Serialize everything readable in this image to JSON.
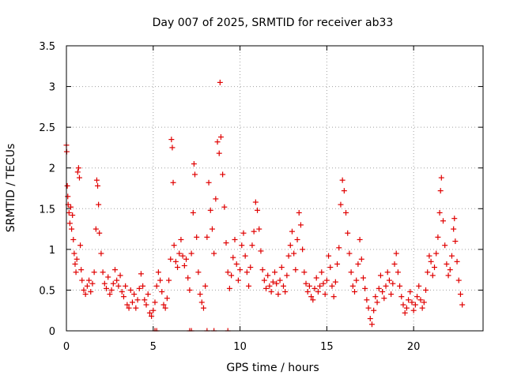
{
  "chart_data": {
    "type": "scatter",
    "title": "Day 007 of 2025, SRMTID for receiver ab33",
    "xlabel": "GPS time / hours",
    "ylabel": "SRMTID / TECUs",
    "xlim": [
      0,
      24
    ],
    "ylim": [
      0,
      3.5
    ],
    "grid": true,
    "marker": "plus",
    "color": "#e00000",
    "xticks": [
      0,
      5,
      10,
      15,
      20
    ],
    "xtick_labels": [
      "0",
      "5",
      "10",
      "15",
      "20"
    ],
    "yticks": [
      0,
      0.5,
      1,
      1.5,
      2,
      2.5,
      3,
      3.5
    ],
    "ytick_labels": [
      "0",
      "0.5",
      "1",
      "1.5",
      "2",
      "2.5",
      "3",
      "3.5"
    ],
    "series": [
      {
        "name": "SRMTID",
        "points": [
          [
            0.0,
            2.28
          ],
          [
            0.02,
            2.2
          ],
          [
            0.05,
            1.78
          ],
          [
            0.08,
            1.65
          ],
          [
            0.1,
            1.55
          ],
          [
            0.15,
            1.45
          ],
          [
            0.2,
            1.32
          ],
          [
            0.25,
            1.52
          ],
          [
            0.3,
            1.25
          ],
          [
            0.35,
            1.42
          ],
          [
            0.4,
            1.12
          ],
          [
            0.45,
            0.95
          ],
          [
            0.5,
            0.82
          ],
          [
            0.55,
            0.72
          ],
          [
            0.6,
            0.88
          ],
          [
            0.65,
            1.95
          ],
          [
            0.7,
            2.0
          ],
          [
            0.75,
            1.88
          ],
          [
            0.8,
            1.05
          ],
          [
            0.85,
            0.75
          ],
          [
            0.9,
            0.62
          ],
          [
            1.0,
            0.5
          ],
          [
            1.1,
            0.45
          ],
          [
            1.2,
            0.55
          ],
          [
            1.3,
            0.62
          ],
          [
            1.4,
            0.48
          ],
          [
            1.5,
            0.58
          ],
          [
            1.6,
            0.72
          ],
          [
            1.7,
            1.25
          ],
          [
            1.75,
            1.85
          ],
          [
            1.8,
            1.78
          ],
          [
            1.85,
            1.55
          ],
          [
            1.9,
            1.2
          ],
          [
            2.0,
            0.95
          ],
          [
            2.1,
            0.72
          ],
          [
            2.2,
            0.58
          ],
          [
            2.3,
            0.52
          ],
          [
            2.4,
            0.66
          ],
          [
            2.5,
            0.45
          ],
          [
            2.6,
            0.5
          ],
          [
            2.7,
            0.58
          ],
          [
            2.8,
            0.75
          ],
          [
            2.9,
            0.62
          ],
          [
            3.0,
            0.55
          ],
          [
            3.1,
            0.68
          ],
          [
            3.2,
            0.48
          ],
          [
            3.3,
            0.42
          ],
          [
            3.4,
            0.55
          ],
          [
            3.5,
            0.32
          ],
          [
            3.6,
            0.28
          ],
          [
            3.7,
            0.5
          ],
          [
            3.8,
            0.35
          ],
          [
            3.9,
            0.45
          ],
          [
            4.0,
            0.28
          ],
          [
            4.1,
            0.38
          ],
          [
            4.2,
            0.52
          ],
          [
            4.3,
            0.7
          ],
          [
            4.4,
            0.55
          ],
          [
            4.5,
            0.38
          ],
          [
            4.6,
            0.32
          ],
          [
            4.7,
            0.45
          ],
          [
            4.8,
            0.22
          ],
          [
            4.9,
            0.18
          ],
          [
            5.0,
            0.25
          ],
          [
            5.1,
            0.35
          ],
          [
            5.2,
            0.55
          ],
          [
            5.3,
            0.72
          ],
          [
            5.4,
            0.62
          ],
          [
            5.5,
            0.48
          ],
          [
            5.6,
            0.32
          ],
          [
            5.7,
            0.28
          ],
          [
            5.8,
            0.4
          ],
          [
            5.9,
            0.62
          ],
          [
            6.0,
            0.88
          ],
          [
            6.05,
            2.35
          ],
          [
            6.1,
            2.25
          ],
          [
            6.15,
            1.82
          ],
          [
            6.2,
            1.05
          ],
          [
            6.3,
            0.85
          ],
          [
            6.4,
            0.78
          ],
          [
            6.5,
            0.95
          ],
          [
            6.6,
            1.12
          ],
          [
            6.7,
            0.92
          ],
          [
            6.8,
            0.8
          ],
          [
            6.9,
            0.88
          ],
          [
            7.0,
            0.65
          ],
          [
            7.1,
            0.5
          ],
          [
            7.2,
            0.95
          ],
          [
            7.3,
            1.45
          ],
          [
            7.35,
            2.05
          ],
          [
            7.4,
            1.92
          ],
          [
            7.5,
            1.15
          ],
          [
            7.6,
            0.72
          ],
          [
            7.7,
            0.45
          ],
          [
            7.8,
            0.35
          ],
          [
            7.9,
            0.28
          ],
          [
            8.0,
            0.55
          ],
          [
            8.1,
            1.15
          ],
          [
            8.2,
            1.82
          ],
          [
            8.3,
            1.48
          ],
          [
            8.4,
            1.25
          ],
          [
            8.5,
            0.95
          ],
          [
            8.6,
            1.62
          ],
          [
            8.7,
            2.32
          ],
          [
            8.8,
            2.18
          ],
          [
            8.85,
            3.05
          ],
          [
            8.9,
            2.38
          ],
          [
            9.0,
            1.92
          ],
          [
            9.1,
            1.52
          ],
          [
            9.2,
            1.08
          ],
          [
            9.3,
            0.72
          ],
          [
            9.4,
            0.52
          ],
          [
            9.5,
            0.68
          ],
          [
            9.6,
            0.9
          ],
          [
            9.7,
            1.12
          ],
          [
            9.8,
            0.82
          ],
          [
            9.9,
            0.62
          ],
          [
            10.0,
            0.75
          ],
          [
            10.1,
            1.05
          ],
          [
            10.2,
            1.2
          ],
          [
            10.3,
            0.92
          ],
          [
            10.4,
            0.72
          ],
          [
            10.5,
            0.55
          ],
          [
            10.6,
            0.78
          ],
          [
            10.7,
            1.05
          ],
          [
            10.8,
            1.22
          ],
          [
            10.9,
            1.58
          ],
          [
            11.0,
            1.48
          ],
          [
            11.1,
            1.25
          ],
          [
            11.2,
            0.98
          ],
          [
            11.3,
            0.75
          ],
          [
            11.4,
            0.62
          ],
          [
            11.5,
            0.52
          ],
          [
            11.6,
            0.68
          ],
          [
            11.7,
            0.55
          ],
          [
            11.8,
            0.48
          ],
          [
            11.9,
            0.6
          ],
          [
            12.0,
            0.72
          ],
          [
            12.1,
            0.58
          ],
          [
            12.2,
            0.45
          ],
          [
            12.3,
            0.62
          ],
          [
            12.4,
            0.78
          ],
          [
            12.5,
            0.55
          ],
          [
            12.6,
            0.48
          ],
          [
            12.7,
            0.68
          ],
          [
            12.8,
            0.92
          ],
          [
            12.9,
            1.05
          ],
          [
            13.0,
            1.22
          ],
          [
            13.1,
            0.95
          ],
          [
            13.2,
            0.75
          ],
          [
            13.3,
            1.12
          ],
          [
            13.4,
            1.45
          ],
          [
            13.5,
            1.3
          ],
          [
            13.6,
            1.0
          ],
          [
            13.7,
            0.72
          ],
          [
            13.8,
            0.58
          ],
          [
            13.9,
            0.48
          ],
          [
            14.0,
            0.55
          ],
          [
            14.1,
            0.42
          ],
          [
            14.2,
            0.38
          ],
          [
            14.3,
            0.52
          ],
          [
            14.4,
            0.65
          ],
          [
            14.5,
            0.48
          ],
          [
            14.6,
            0.55
          ],
          [
            14.7,
            0.72
          ],
          [
            14.8,
            0.58
          ],
          [
            14.9,
            0.45
          ],
          [
            15.0,
            0.62
          ],
          [
            15.1,
            0.92
          ],
          [
            15.2,
            0.78
          ],
          [
            15.3,
            0.55
          ],
          [
            15.4,
            0.42
          ],
          [
            15.5,
            0.6
          ],
          [
            15.6,
            0.82
          ],
          [
            15.7,
            1.02
          ],
          [
            15.8,
            1.55
          ],
          [
            15.9,
            1.85
          ],
          [
            16.0,
            1.72
          ],
          [
            16.1,
            1.45
          ],
          [
            16.2,
            1.2
          ],
          [
            16.3,
            0.95
          ],
          [
            16.4,
            0.72
          ],
          [
            16.5,
            0.55
          ],
          [
            16.6,
            0.48
          ],
          [
            16.7,
            0.62
          ],
          [
            16.8,
            0.82
          ],
          [
            16.9,
            1.12
          ],
          [
            17.0,
            0.88
          ],
          [
            17.1,
            0.65
          ],
          [
            17.2,
            0.52
          ],
          [
            17.3,
            0.38
          ],
          [
            17.4,
            0.28
          ],
          [
            17.5,
            0.15
          ],
          [
            17.6,
            0.08
          ],
          [
            17.7,
            0.25
          ],
          [
            17.8,
            0.42
          ],
          [
            17.9,
            0.35
          ],
          [
            18.0,
            0.52
          ],
          [
            18.1,
            0.68
          ],
          [
            18.2,
            0.48
          ],
          [
            18.3,
            0.4
          ],
          [
            18.4,
            0.55
          ],
          [
            18.5,
            0.72
          ],
          [
            18.6,
            0.62
          ],
          [
            18.7,
            0.45
          ],
          [
            18.8,
            0.58
          ],
          [
            18.9,
            0.82
          ],
          [
            19.0,
            0.95
          ],
          [
            19.1,
            0.72
          ],
          [
            19.2,
            0.55
          ],
          [
            19.3,
            0.42
          ],
          [
            19.4,
            0.32
          ],
          [
            19.5,
            0.22
          ],
          [
            19.6,
            0.28
          ],
          [
            19.7,
            0.38
          ],
          [
            19.8,
            0.48
          ],
          [
            19.9,
            0.35
          ],
          [
            20.0,
            0.25
          ],
          [
            20.1,
            0.32
          ],
          [
            20.2,
            0.42
          ],
          [
            20.3,
            0.55
          ],
          [
            20.4,
            0.38
          ],
          [
            20.5,
            0.28
          ],
          [
            20.6,
            0.35
          ],
          [
            20.7,
            0.5
          ],
          [
            20.8,
            0.72
          ],
          [
            20.9,
            0.92
          ],
          [
            21.0,
            0.85
          ],
          [
            21.1,
            0.68
          ],
          [
            21.2,
            0.78
          ],
          [
            21.3,
            0.95
          ],
          [
            21.4,
            1.15
          ],
          [
            21.5,
            1.45
          ],
          [
            21.55,
            1.72
          ],
          [
            21.6,
            1.88
          ],
          [
            21.7,
            1.35
          ],
          [
            21.8,
            1.05
          ],
          [
            21.9,
            0.82
          ],
          [
            22.0,
            0.68
          ],
          [
            22.1,
            0.75
          ],
          [
            22.2,
            0.92
          ],
          [
            22.3,
            1.25
          ],
          [
            22.35,
            1.38
          ],
          [
            22.4,
            1.1
          ],
          [
            22.5,
            0.85
          ],
          [
            22.6,
            0.62
          ],
          [
            22.7,
            0.45
          ],
          [
            22.8,
            0.32
          ]
        ],
        "zero_points": [
          5.1,
          5.2,
          7.1,
          7.2,
          8.1,
          8.5,
          9.3
        ]
      }
    ]
  }
}
